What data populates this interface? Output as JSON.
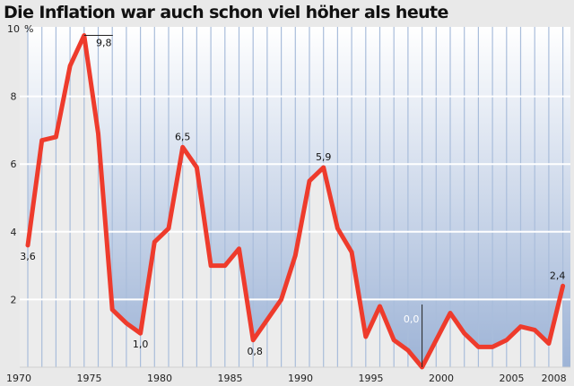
{
  "chart_data": {
    "type": "line",
    "title": "Die Inflation war auch schon viel höher als heute",
    "ylabel": "%",
    "xlabel": "",
    "ylim": [
      0,
      10
    ],
    "yticks": [
      "2",
      "4",
      "6",
      "8",
      "10"
    ],
    "xticks": [
      "1970",
      "1975",
      "1980",
      "1985",
      "1990",
      "1995",
      "2000",
      "2005",
      "2008"
    ],
    "grid": {
      "horizontal": true,
      "vertical": true
    },
    "colors": {
      "line": "#ee3b2c",
      "fill_top": "#ffffff",
      "fill_bottom": "#9db3d6",
      "under_curve": "#ececec",
      "grid_vertical": "#a9bddb"
    },
    "x": [
      1970,
      1971,
      1972,
      1973,
      1974,
      1975,
      1976,
      1977,
      1978,
      1979,
      1980,
      1981,
      1982,
      1983,
      1984,
      1985,
      1986,
      1987,
      1988,
      1989,
      1990,
      1991,
      1992,
      1993,
      1994,
      1995,
      1996,
      1997,
      1998,
      1999,
      2000,
      2001,
      2002,
      2003,
      2004,
      2005,
      2006,
      2007,
      2008
    ],
    "values": [
      3.6,
      6.7,
      6.8,
      8.9,
      9.8,
      6.9,
      1.7,
      1.3,
      1.0,
      3.7,
      4.1,
      6.5,
      5.9,
      3.0,
      3.0,
      3.5,
      0.8,
      1.4,
      2.0,
      3.3,
      5.5,
      5.9,
      4.1,
      3.4,
      0.9,
      1.8,
      0.8,
      0.5,
      0.0,
      0.8,
      1.6,
      1.0,
      0.6,
      0.6,
      0.8,
      1.2,
      1.1,
      0.7,
      2.4
    ],
    "annotations": [
      {
        "x": 1970,
        "value": 3.6,
        "text": "3,6"
      },
      {
        "x": 1974,
        "value": 9.8,
        "text": "9,8"
      },
      {
        "x": 1978,
        "value": 1.0,
        "text": "1,0"
      },
      {
        "x": 1981,
        "value": 6.5,
        "text": "6,5"
      },
      {
        "x": 1986,
        "value": 0.8,
        "text": "0,8"
      },
      {
        "x": 1991,
        "value": 5.9,
        "text": "5,9"
      },
      {
        "x": 1998,
        "value": 0.0,
        "text": "0,0"
      },
      {
        "x": 2008,
        "value": 2.4,
        "text": "2,4"
      }
    ]
  }
}
